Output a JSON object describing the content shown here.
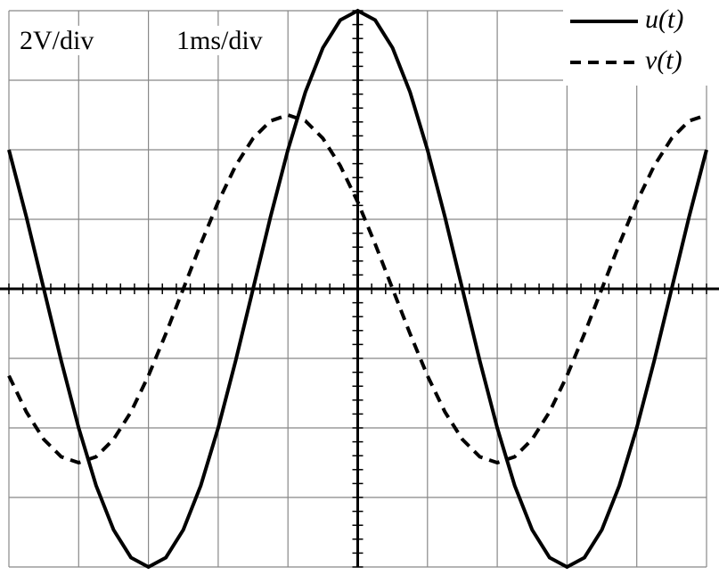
{
  "chart_data": {
    "type": "line",
    "annotations": [
      "2V/div",
      "1ms/div"
    ],
    "x": [
      -5,
      -4.75,
      -4.5,
      -4.25,
      -4,
      -3.75,
      -3.5,
      -3.25,
      -3,
      -2.75,
      -2.5,
      -2.25,
      -2,
      -1.75,
      -1.5,
      -1.25,
      -1,
      -0.75,
      -0.5,
      -0.25,
      0,
      0.25,
      0.5,
      0.75,
      1,
      1.25,
      1.5,
      1.75,
      2,
      2.25,
      2.5,
      2.75,
      3,
      3.25,
      3.5,
      3.75,
      4,
      4.25,
      4.5,
      4.75,
      5
    ],
    "series": [
      {
        "name": "u(t)",
        "color": "#000000",
        "style": "solid",
        "values": [
          4,
          2.07,
          0,
          -2.07,
          -4,
          -5.66,
          -6.93,
          -7.73,
          -8,
          -7.73,
          -6.93,
          -5.66,
          -4,
          -2.07,
          0,
          2.07,
          4,
          5.66,
          6.93,
          7.73,
          8,
          7.73,
          6.93,
          5.66,
          4,
          2.07,
          0,
          -2.07,
          -4,
          -5.66,
          -6.93,
          -7.73,
          -8,
          -7.73,
          -6.93,
          -5.66,
          -4,
          -2.07,
          0,
          2.07,
          4
        ]
      },
      {
        "name": "v(t)",
        "color": "#000000",
        "style": "dashed",
        "values": [
          -2.5,
          -3.54,
          -4.33,
          -4.83,
          -5,
          -4.83,
          -4.33,
          -3.54,
          -2.5,
          -1.29,
          0,
          1.29,
          2.5,
          3.54,
          4.33,
          4.83,
          5,
          4.83,
          4.33,
          3.54,
          2.5,
          1.29,
          0,
          -1.29,
          -2.5,
          -3.54,
          -4.33,
          -4.83,
          -5,
          -4.83,
          -4.33,
          -3.54,
          -2.5,
          -1.29,
          0,
          1.29,
          2.5,
          3.54,
          4.33,
          4.83,
          5
        ]
      }
    ],
    "xlim": [
      -5,
      5
    ],
    "xticks": [
      -5,
      -4,
      -3,
      -2,
      -1,
      0,
      1,
      2,
      3,
      4,
      5
    ],
    "ylim": [
      -8,
      8
    ],
    "yticks": [
      -8,
      -6,
      -4,
      -2,
      0,
      2,
      4,
      6,
      8
    ],
    "grid": true,
    "legend": "top-right"
  }
}
